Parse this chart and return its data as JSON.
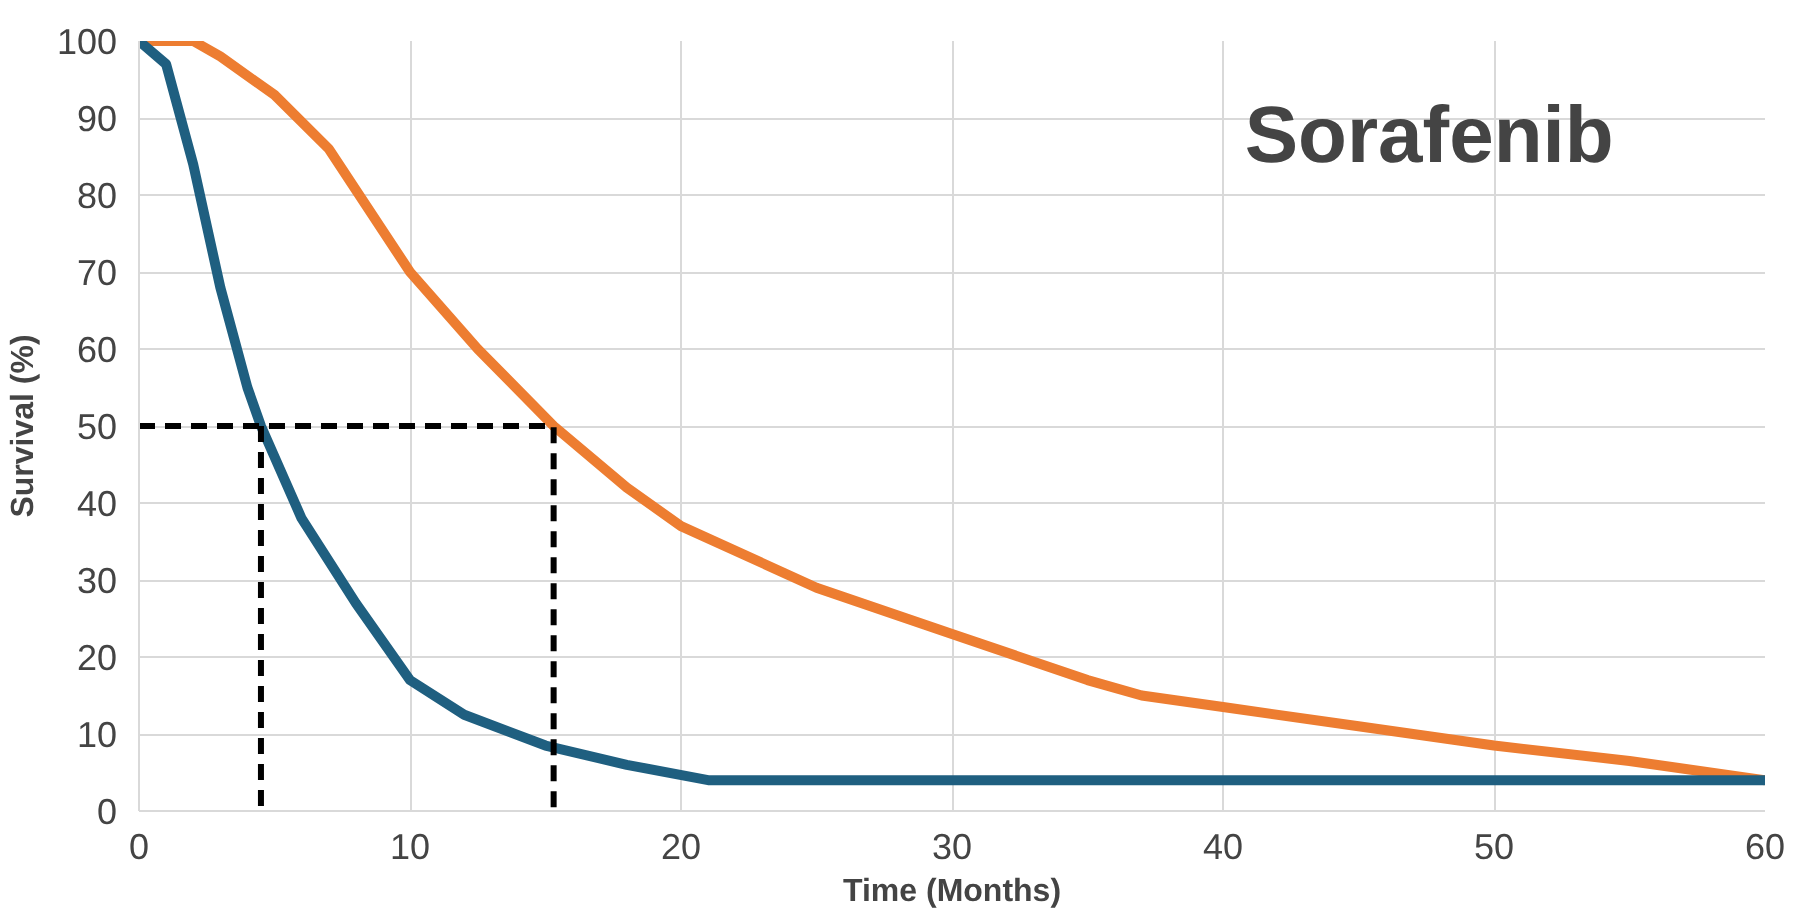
{
  "chart_data": {
    "type": "line",
    "xlabel": "Time (Months)",
    "ylabel": "Survival (%)",
    "annotations": [
      "Sorafenib"
    ],
    "xlim": [
      0,
      60
    ],
    "xticks": [
      0,
      10,
      20,
      30,
      40,
      50,
      60
    ],
    "ylim": [
      0,
      100
    ],
    "yticks": [
      0,
      10,
      20,
      30,
      40,
      50,
      60,
      70,
      80,
      90,
      100
    ],
    "grid": true,
    "marker": "none",
    "series": [
      {
        "color": "#ed7d31",
        "line_style": "solid",
        "x": [
          0,
          2,
          3,
          5,
          7,
          10,
          12.5,
          15.3,
          18,
          20,
          25,
          30,
          35,
          37,
          40,
          45,
          50,
          55,
          60
        ],
        "values": [
          100,
          100,
          98,
          93,
          86,
          70,
          60,
          50,
          42,
          37,
          29,
          23,
          17,
          15,
          13.5,
          11,
          8.5,
          6.5,
          4
        ]
      },
      {
        "color": "#1f5f80",
        "line_style": "solid",
        "x": [
          0,
          1,
          2,
          3,
          4,
          4.5,
          6,
          8,
          10,
          12,
          15,
          18,
          21,
          30,
          40,
          50,
          60
        ],
        "values": [
          100,
          97,
          84,
          68,
          55,
          50,
          38,
          27,
          17,
          12.5,
          8.5,
          6,
          4,
          4,
          4,
          4,
          4
        ]
      },
      {
        "color": "#000000",
        "line_style": "dashed",
        "x": [
          0,
          15.3,
          15.3
        ],
        "values": [
          50,
          50,
          0
        ]
      },
      {
        "color": "#000000",
        "line_style": "dashed",
        "x": [
          4.5,
          4.5
        ],
        "values": [
          50,
          0
        ]
      }
    ]
  }
}
